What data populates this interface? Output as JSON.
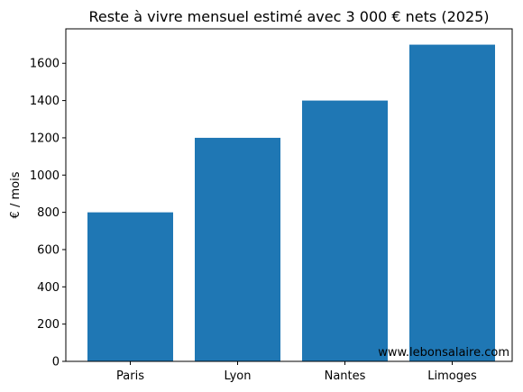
{
  "chart_data": {
    "type": "bar",
    "title": "Reste à vivre mensuel estimé avec 3 000 € nets (2025)",
    "xlabel": "",
    "ylabel": "€ / mois",
    "categories": [
      "Paris",
      "Lyon",
      "Nantes",
      "Limoges"
    ],
    "values": [
      800,
      1200,
      1400,
      1700
    ],
    "ylim": [
      0,
      1785
    ],
    "yticks": [
      0,
      200,
      400,
      600,
      800,
      1000,
      1200,
      1400,
      1600
    ],
    "grid": false,
    "bar_color": "#1f77b4",
    "annotation": "www.lebonsalaire.com"
  }
}
